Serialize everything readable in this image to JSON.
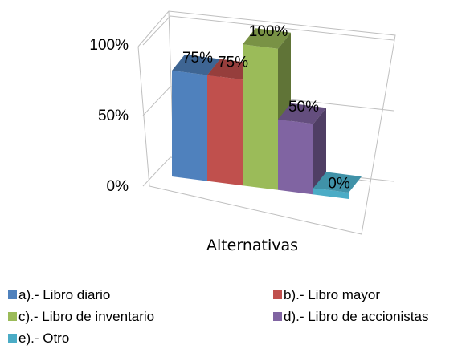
{
  "chart_data": {
    "type": "bar",
    "xlabel": "Alternativas",
    "ylim": [
      0,
      100
    ],
    "y_ticks": [
      "0%",
      "50%",
      "100%"
    ],
    "grid": true,
    "legend_position": "bottom",
    "series": [
      {
        "name": "a).- Libro diario",
        "value": 75,
        "label": "75%",
        "color": "#4F81BD"
      },
      {
        "name": "b).- Libro mayor",
        "value": 75,
        "label": "75%",
        "color": "#C0504D"
      },
      {
        "name": "c).- Libro de inventario",
        "value": 100,
        "label": "100%",
        "color": "#9BBB59"
      },
      {
        "name": "d).- Libro de accionistas",
        "value": 50,
        "label": "50%",
        "color": "#8064A2"
      },
      {
        "name": "e).- Otro",
        "value": 0,
        "label": "0%",
        "color": "#4BACC6"
      }
    ]
  }
}
